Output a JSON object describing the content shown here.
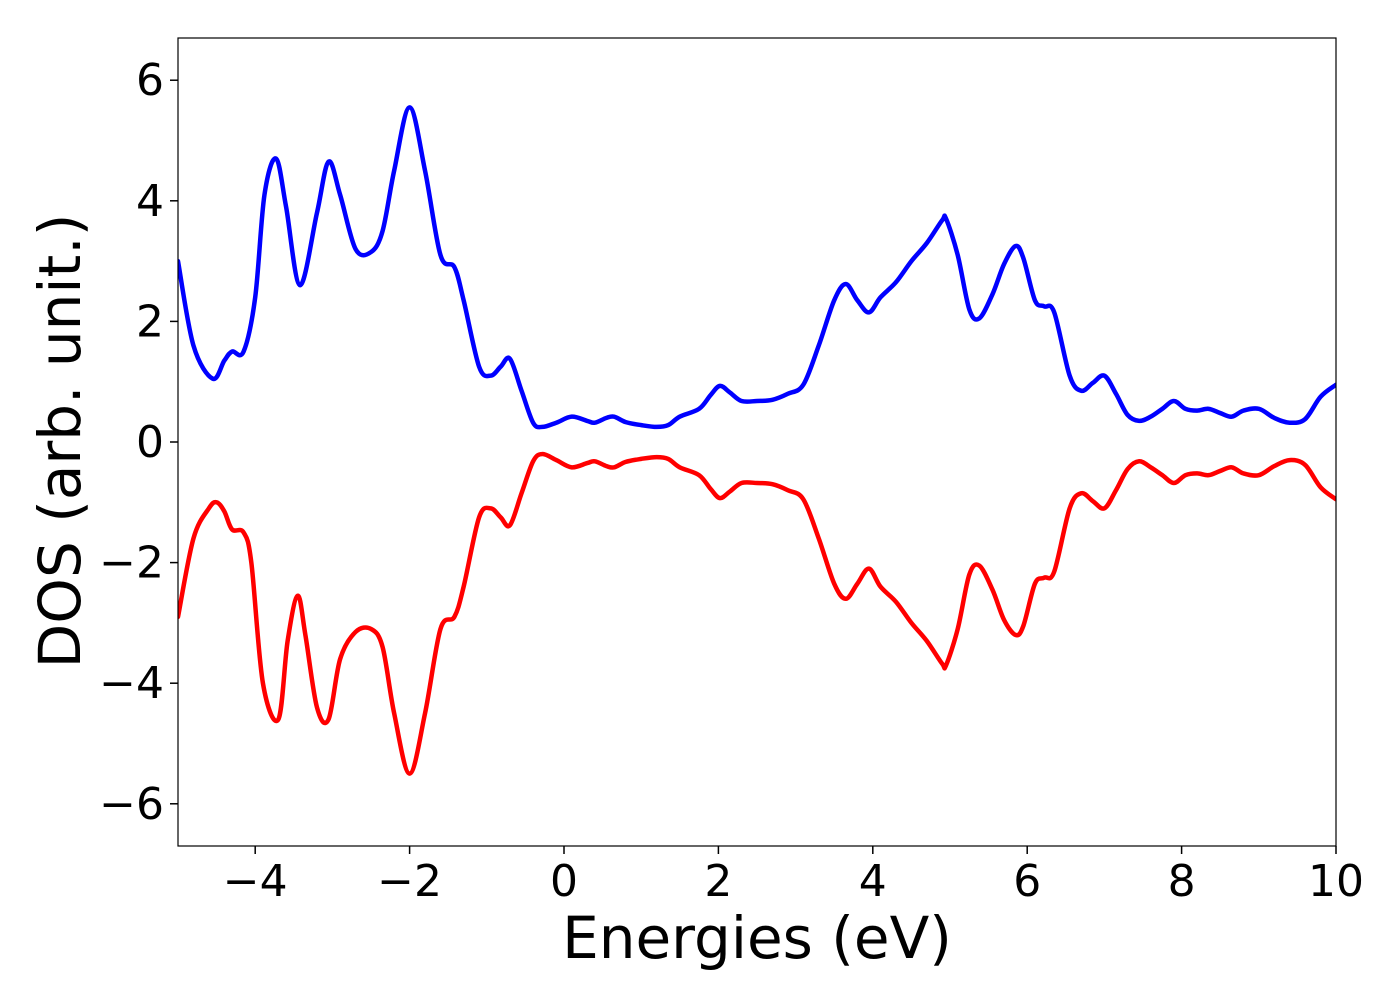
{
  "chart_data": {
    "type": "line",
    "xlabel": "Energies (eV)",
    "ylabel": "DOS (arb. unit.)",
    "xlim": [
      -5,
      10
    ],
    "ylim": [
      -6.7,
      6.7
    ],
    "grid": false,
    "x_ticks": [
      -4,
      -2,
      0,
      2,
      4,
      6,
      8,
      10
    ],
    "x_tick_labels": [
      "−4",
      "−2",
      "0",
      "2",
      "4",
      "6",
      "8",
      "10"
    ],
    "y_ticks": [
      6,
      4,
      2,
      0,
      -2,
      -4,
      -6
    ],
    "y_tick_labels": [
      "6",
      "4",
      "2",
      "0",
      "−2",
      "−4",
      "−6"
    ],
    "series": [
      {
        "color": "#0000ff",
        "x": [
          -5.0,
          -4.8,
          -4.55,
          -4.4,
          -4.3,
          -4.15,
          -4.0,
          -3.88,
          -3.73,
          -3.6,
          -3.42,
          -3.2,
          -3.05,
          -2.9,
          -2.7,
          -2.5,
          -2.35,
          -2.2,
          -2.0,
          -1.8,
          -1.6,
          -1.42,
          -1.3,
          -1.1,
          -0.95,
          -0.82,
          -0.7,
          -0.55,
          -0.4,
          -0.28,
          -0.1,
          0.1,
          0.3,
          0.4,
          0.55,
          0.65,
          0.8,
          1.0,
          1.2,
          1.35,
          1.5,
          1.75,
          1.9,
          2.02,
          2.15,
          2.3,
          2.5,
          2.7,
          2.9,
          3.1,
          3.3,
          3.5,
          3.65,
          3.8,
          3.95,
          4.1,
          4.3,
          4.5,
          4.7,
          4.9,
          4.95,
          5.1,
          5.25,
          5.38,
          5.55,
          5.7,
          5.85,
          5.95,
          6.1,
          6.22,
          6.35,
          6.55,
          6.7,
          6.85,
          7.0,
          7.15,
          7.3,
          7.45,
          7.6,
          7.75,
          7.9,
          8.05,
          8.2,
          8.35,
          8.5,
          8.65,
          8.8,
          9.0,
          9.2,
          9.4,
          9.6,
          9.8,
          10.0
        ],
        "y": [
          3.0,
          1.6,
          1.05,
          1.35,
          1.5,
          1.5,
          2.4,
          4.1,
          4.7,
          3.9,
          2.6,
          3.8,
          4.65,
          4.1,
          3.2,
          3.15,
          3.5,
          4.5,
          5.55,
          4.5,
          3.1,
          2.9,
          2.35,
          1.25,
          1.1,
          1.25,
          1.38,
          0.85,
          0.32,
          0.25,
          0.32,
          0.42,
          0.35,
          0.32,
          0.4,
          0.42,
          0.33,
          0.28,
          0.25,
          0.28,
          0.42,
          0.55,
          0.78,
          0.93,
          0.82,
          0.68,
          0.68,
          0.7,
          0.8,
          0.95,
          1.6,
          2.35,
          2.62,
          2.35,
          2.15,
          2.4,
          2.65,
          3.0,
          3.3,
          3.68,
          3.7,
          3.1,
          2.2,
          2.05,
          2.45,
          2.95,
          3.25,
          3.05,
          2.35,
          2.25,
          2.15,
          1.1,
          0.85,
          0.98,
          1.1,
          0.8,
          0.45,
          0.35,
          0.42,
          0.55,
          0.68,
          0.55,
          0.52,
          0.55,
          0.48,
          0.42,
          0.52,
          0.55,
          0.4,
          0.32,
          0.38,
          0.75,
          0.95
        ]
      },
      {
        "color": "#ff0000",
        "x": [
          -5.0,
          -4.8,
          -4.6,
          -4.5,
          -4.4,
          -4.3,
          -4.15,
          -4.05,
          -3.9,
          -3.7,
          -3.58,
          -3.45,
          -3.35,
          -3.2,
          -3.05,
          -2.9,
          -2.7,
          -2.5,
          -2.35,
          -2.2,
          -2.0,
          -1.8,
          -1.6,
          -1.42,
          -1.3,
          -1.1,
          -0.95,
          -0.82,
          -0.7,
          -0.55,
          -0.4,
          -0.28,
          -0.1,
          0.1,
          0.3,
          0.4,
          0.55,
          0.65,
          0.8,
          1.0,
          1.2,
          1.35,
          1.5,
          1.75,
          1.9,
          2.02,
          2.15,
          2.3,
          2.5,
          2.7,
          2.9,
          3.1,
          3.3,
          3.5,
          3.65,
          3.8,
          3.95,
          4.1,
          4.3,
          4.5,
          4.7,
          4.9,
          4.95,
          5.1,
          5.25,
          5.38,
          5.55,
          5.7,
          5.85,
          5.95,
          6.1,
          6.22,
          6.35,
          6.55,
          6.7,
          6.85,
          7.0,
          7.15,
          7.3,
          7.45,
          7.6,
          7.75,
          7.9,
          8.05,
          8.2,
          8.35,
          8.5,
          8.65,
          8.8,
          9.0,
          9.2,
          9.4,
          9.6,
          9.8,
          10.0
        ],
        "y": [
          -2.9,
          -1.6,
          -1.1,
          -1.0,
          -1.15,
          -1.45,
          -1.5,
          -2.0,
          -4.0,
          -4.6,
          -3.3,
          -2.55,
          -3.2,
          -4.4,
          -4.6,
          -3.6,
          -3.15,
          -3.1,
          -3.4,
          -4.5,
          -5.5,
          -4.5,
          -3.1,
          -2.9,
          -2.4,
          -1.25,
          -1.1,
          -1.25,
          -1.38,
          -0.85,
          -0.32,
          -0.2,
          -0.3,
          -0.42,
          -0.35,
          -0.32,
          -0.4,
          -0.42,
          -0.33,
          -0.28,
          -0.25,
          -0.28,
          -0.42,
          -0.55,
          -0.78,
          -0.93,
          -0.82,
          -0.68,
          -0.68,
          -0.7,
          -0.8,
          -0.95,
          -1.6,
          -2.35,
          -2.6,
          -2.35,
          -2.1,
          -2.4,
          -2.65,
          -3.0,
          -3.3,
          -3.68,
          -3.7,
          -3.1,
          -2.2,
          -2.05,
          -2.45,
          -2.95,
          -3.2,
          -3.05,
          -2.35,
          -2.25,
          -2.15,
          -1.1,
          -0.85,
          -0.98,
          -1.1,
          -0.8,
          -0.45,
          -0.32,
          -0.42,
          -0.55,
          -0.68,
          -0.55,
          -0.52,
          -0.55,
          -0.48,
          -0.42,
          -0.52,
          -0.55,
          -0.4,
          -0.3,
          -0.38,
          -0.75,
          -0.95
        ]
      }
    ]
  }
}
